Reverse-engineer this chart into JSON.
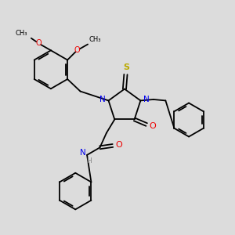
{
  "background_color": "#dcdcdc",
  "bond_color": "#000000",
  "N_color": "#0000ee",
  "O_color": "#ee0000",
  "S_color": "#bbaa00",
  "H_color": "#888888",
  "figsize": [
    3.0,
    3.0
  ],
  "dpi": 100,
  "xlim": [
    0,
    10
  ],
  "ylim": [
    0,
    10
  ]
}
